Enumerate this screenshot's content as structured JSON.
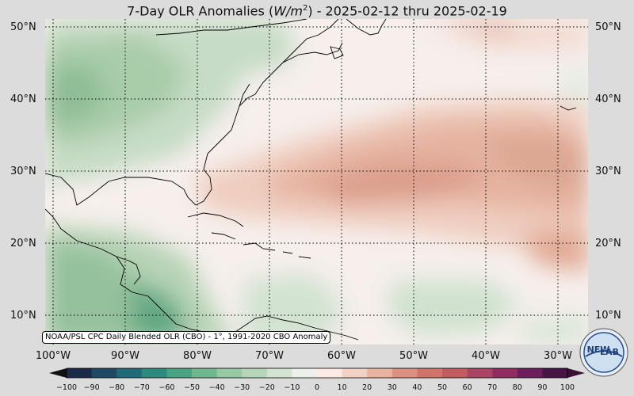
{
  "title": {
    "prefix": "7-Day OLR Anomalies (",
    "unit_italic": "W/m",
    "unit_sup": "2",
    "suffix": ") - 2025-02-12 thru 2025-02-19"
  },
  "lat_labels": [
    "50°N",
    "40°N",
    "30°N",
    "20°N",
    "10°N"
  ],
  "lon_labels": [
    "100°W",
    "90°W",
    "80°W",
    "70°W",
    "60°W",
    "50°W",
    "40°W",
    "30°W"
  ],
  "source_note": "NOAA/PSL CPC Daily Blended OLR (CBO) - 1°, 1991-2020 CBO Anomaly",
  "colorbar": {
    "ticks": [
      "−100",
      "−90",
      "−80",
      "−70",
      "−60",
      "−50",
      "−40",
      "−30",
      "−20",
      "−10",
      "0",
      "10",
      "20",
      "30",
      "40",
      "50",
      "60",
      "70",
      "80",
      "90",
      "100"
    ],
    "negative_colors": [
      "#1c2a4a",
      "#1f4a66",
      "#1f6b7a",
      "#2e8a7e",
      "#4aa483",
      "#6db88f",
      "#94c9a4",
      "#b6d6ba",
      "#d3e3d2",
      "#ebf1ea"
    ],
    "positive_colors": [
      "#fbeae5",
      "#f3d0c4",
      "#eab3a0",
      "#dd9180",
      "#cf7468",
      "#c15d60",
      "#a94462",
      "#8f2d62",
      "#6f1c5c",
      "#4a1346"
    ]
  },
  "logo": {
    "text_top": "NEW",
    "text_bottom": "LAB"
  }
}
